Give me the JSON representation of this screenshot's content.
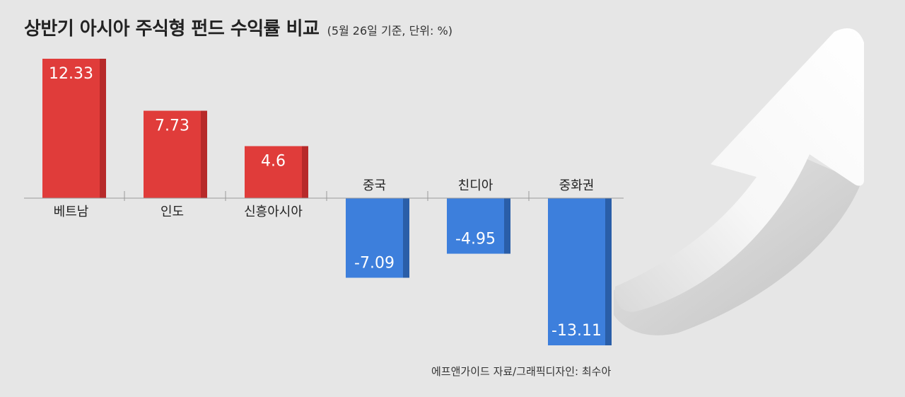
{
  "header": {
    "title": "상반기 아시아 주식형 펀드 수익률 비교",
    "subtitle": "(5월 26일 기준, 단위: %)"
  },
  "footer": {
    "source": "에프앤가이드 자료/그래픽디자인: 최수아"
  },
  "colors": {
    "positive": "#e03c3a",
    "positive_side": "#b72a2a",
    "negative": "#3d7fdc",
    "negative_side": "#2a5ea8",
    "axis": "#9a9a9a"
  },
  "decoration": {
    "arrow_icon": "upward-arrow-icon"
  },
  "chart_data": {
    "type": "bar",
    "title": "상반기 아시아 주식형 펀드 수익률 비교",
    "subtitle": "(5월 26일 기준, 단위: %)",
    "categories": [
      "베트남",
      "인도",
      "신흥아시아",
      "중국",
      "친디아",
      "중화권"
    ],
    "values": [
      12.33,
      7.73,
      4.6,
      -7.09,
      -4.95,
      -13.11
    ],
    "value_labels": [
      "12.33",
      "7.73",
      "4.6",
      "-7.09",
      "-4.95",
      "-13.11"
    ],
    "xlabel": "",
    "ylabel": "",
    "ylim": [
      -13.11,
      12.33
    ],
    "grid": false,
    "legend": "none"
  }
}
